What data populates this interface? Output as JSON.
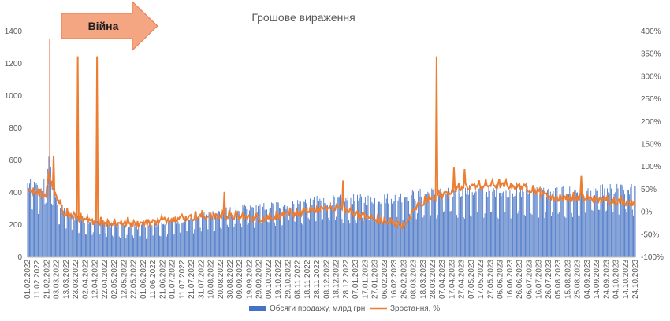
{
  "chart_data": {
    "type": "bar",
    "title": "Грошове вираження",
    "annotation": "Війна",
    "annotation_date": "2022-02-24",
    "y_left": {
      "min": 0,
      "max": 1400,
      "step": 200,
      "ticks": [
        "0",
        "200",
        "400",
        "600",
        "800",
        "1000",
        "1200",
        "1400"
      ]
    },
    "y_right": {
      "min": -100,
      "max": 400,
      "step": 50,
      "ticks": [
        "-100%",
        "-50%",
        "0%",
        "50%",
        "100%",
        "150%",
        "200%",
        "250%",
        "300%",
        "350%",
        "400%"
      ]
    },
    "x_start": "2022-02-01",
    "x_end": "2023-10-24",
    "x_tick_labels": [
      "01.02.2022",
      "11.02.2022",
      "21.02.2022",
      "03.03.2022",
      "13.03.2022",
      "23.03.2022",
      "02.04.2022",
      "12.04.2022",
      "22.04.2022",
      "02.05.2022",
      "12.05.2022",
      "22.05.2022",
      "01.06.2022",
      "11.06.2022",
      "21.06.2022",
      "01.07.2022",
      "11.07.2022",
      "21.07.2022",
      "31.07.2022",
      "10.08.2022",
      "20.08.2022",
      "30.08.2022",
      "09.09.2022",
      "19.09.2022",
      "29.09.2022",
      "09.10.2022",
      "19.10.2022",
      "29.10.2022",
      "08.11.2022",
      "18.11.2022",
      "28.11.2022",
      "08.12.2022",
      "18.12.2022",
      "28.12.2022",
      "07.01.2023",
      "17.01.2023",
      "27.01.2023",
      "06.02.2023",
      "16.02.2023",
      "26.02.2023",
      "08.03.2023",
      "18.03.2023",
      "28.03.2023",
      "07.04.2023",
      "17.04.2023",
      "27.04.2023",
      "07.05.2023",
      "17.05.2023",
      "27.05.2023",
      "06.06.2023",
      "16.06.2023",
      "26.06.2023",
      "06.07.2023",
      "16.07.2023",
      "26.07.2023",
      "05.08.2023",
      "15.08.2023",
      "25.08.2023",
      "04.09.2023",
      "14.09.2023",
      "24.09.2023",
      "04.10.2023",
      "14.10.2023",
      "24.10.2023"
    ],
    "sales_profile": [
      [
        "2022-02-01",
        450
      ],
      [
        "2022-02-15",
        420
      ],
      [
        "2022-02-21",
        500
      ],
      [
        "2022-02-24",
        650
      ],
      [
        "2022-02-28",
        400
      ],
      [
        "2022-03-08",
        300
      ],
      [
        "2022-03-20",
        250
      ],
      [
        "2022-04-05",
        230
      ],
      [
        "2022-05-01",
        200
      ],
      [
        "2022-06-01",
        190
      ],
      [
        "2022-07-01",
        220
      ],
      [
        "2022-08-01",
        260
      ],
      [
        "2022-09-01",
        290
      ],
      [
        "2022-10-01",
        310
      ],
      [
        "2022-11-01",
        330
      ],
      [
        "2022-12-01",
        350
      ],
      [
        "2023-01-01",
        355
      ],
      [
        "2023-02-01",
        360
      ],
      [
        "2023-03-01",
        380
      ],
      [
        "2023-04-01",
        400
      ],
      [
        "2023-05-01",
        410
      ],
      [
        "2023-06-01",
        410
      ],
      [
        "2023-07-01",
        410
      ],
      [
        "2023-08-01",
        400
      ],
      [
        "2023-09-01",
        410
      ],
      [
        "2023-10-24",
        420
      ]
    ],
    "growth_profile": [
      [
        "2022-02-01",
        50
      ],
      [
        "2022-02-15",
        40
      ],
      [
        "2022-02-20",
        30
      ],
      [
        "2022-02-23",
        90
      ],
      [
        "2022-02-25",
        70
      ],
      [
        "2022-03-01",
        40
      ],
      [
        "2022-03-10",
        0
      ],
      [
        "2022-04-01",
        -20
      ],
      [
        "2022-05-01",
        -25
      ],
      [
        "2022-06-01",
        -25
      ],
      [
        "2022-07-01",
        -15
      ],
      [
        "2022-08-01",
        -10
      ],
      [
        "2022-09-01",
        -10
      ],
      [
        "2022-10-01",
        -15
      ],
      [
        "2022-11-01",
        -5
      ],
      [
        "2022-12-01",
        5
      ],
      [
        "2022-12-20",
        10
      ],
      [
        "2023-01-01",
        0
      ],
      [
        "2023-02-01",
        -20
      ],
      [
        "2023-02-28",
        -30
      ],
      [
        "2023-03-10",
        10
      ],
      [
        "2023-03-25",
        30
      ],
      [
        "2023-04-10",
        40
      ],
      [
        "2023-05-01",
        55
      ],
      [
        "2023-06-01",
        60
      ],
      [
        "2023-07-01",
        55
      ],
      [
        "2023-07-20",
        40
      ],
      [
        "2023-08-01",
        30
      ],
      [
        "2023-09-01",
        30
      ],
      [
        "2023-10-24",
        20
      ]
    ],
    "growth_spikes": [
      [
        "2022-02-28",
        125
      ],
      [
        "2022-03-25",
        345
      ],
      [
        "2022-04-14",
        345
      ],
      [
        "2023-04-01",
        345
      ],
      [
        "2023-04-30",
        95
      ],
      [
        "2023-04-19",
        100
      ],
      [
        "2023-08-29",
        80
      ],
      [
        "2022-12-25",
        70
      ],
      [
        "2022-08-24",
        45
      ]
    ],
    "series": [
      {
        "name": "Обсяги продажу, млрд грн",
        "color": "#4472c4",
        "axis": "left"
      },
      {
        "name": "Зростання, %",
        "color": "#ed7d31",
        "axis": "right"
      }
    ],
    "arrow_color": "#f4a582",
    "grid": false,
    "legend_position": "bottom"
  }
}
